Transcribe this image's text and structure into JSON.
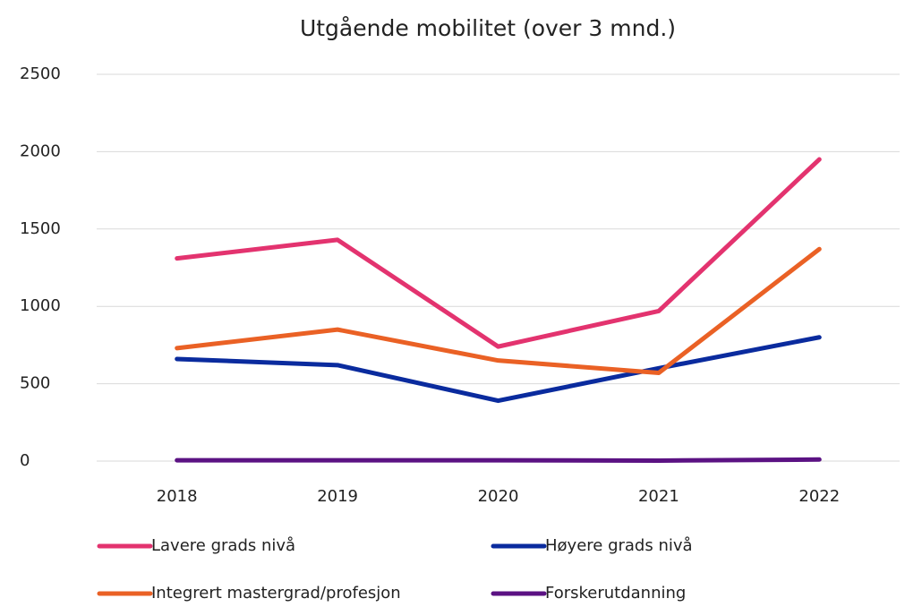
{
  "chart_data": {
    "type": "line",
    "title": "Utgående mobilitet (over 3 mnd.)",
    "x": [
      "2018",
      "2019",
      "2020",
      "2021",
      "2022"
    ],
    "series": [
      {
        "name": "Lavere grads nivå",
        "color": "#e3336f",
        "values": [
          1310,
          1430,
          740,
          970,
          1950
        ]
      },
      {
        "name": "Høyere grads nivå",
        "color": "#0a2b9e",
        "values": [
          660,
          620,
          390,
          600,
          800
        ]
      },
      {
        "name": "Integrert mastergrad/profesjon",
        "color": "#ea6125",
        "values": [
          730,
          850,
          650,
          570,
          1370
        ]
      },
      {
        "name": "Forskerutdanning",
        "color": "#5b1283",
        "values": [
          5,
          5,
          5,
          3,
          10
        ]
      }
    ],
    "ylim": [
      0,
      2500
    ],
    "yticks": [
      0,
      500,
      1000,
      1500,
      2000,
      2500
    ],
    "grid": true,
    "legend": "bottom"
  }
}
